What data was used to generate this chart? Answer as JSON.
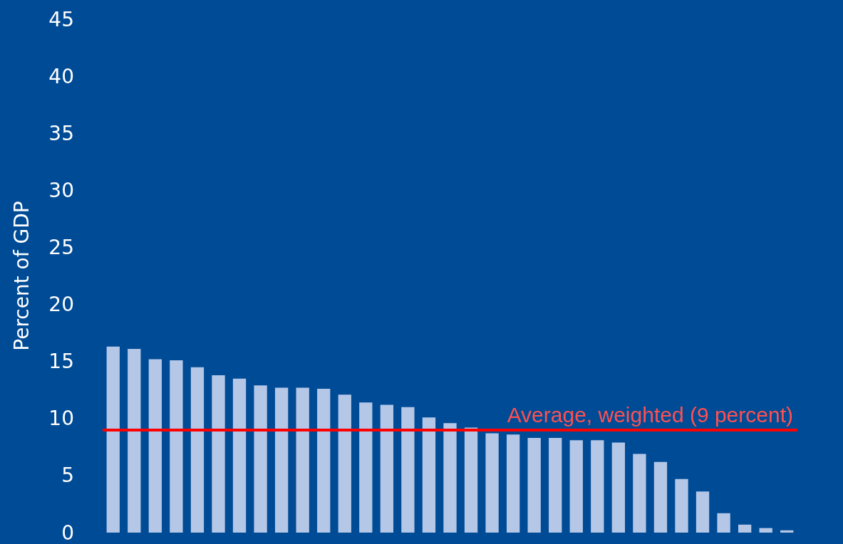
{
  "chart_data": {
    "type": "bar",
    "ylabel": "Percent of GDP",
    "categories": [
      null,
      null,
      null,
      null,
      null,
      null,
      null,
      null,
      null,
      null,
      null,
      null,
      null,
      null,
      null,
      null,
      null,
      null,
      null,
      null,
      null,
      null,
      null,
      null,
      null,
      null,
      null,
      null,
      null,
      null,
      null,
      null,
      null
    ],
    "values": [
      16.3,
      16.1,
      15.2,
      15.1,
      14.5,
      13.8,
      13.5,
      12.9,
      12.7,
      12.7,
      12.6,
      12.1,
      11.4,
      11.2,
      11.0,
      10.1,
      9.6,
      9.2,
      8.7,
      8.6,
      8.3,
      8.3,
      8.1,
      8.1,
      7.9,
      6.9,
      6.2,
      4.7,
      3.6,
      1.7,
      0.7,
      0.4,
      0.2
    ],
    "color": "#b4c7e7",
    "ylim": [
      0,
      45
    ],
    "yticks": [
      0,
      5,
      10,
      15,
      20,
      25,
      30,
      35,
      40,
      45
    ],
    "grid": false,
    "ref_lines": [
      {
        "axis": "y",
        "value": 9,
        "label": "Average, weighted (9 percent)",
        "color": "#ff0000"
      }
    ]
  }
}
